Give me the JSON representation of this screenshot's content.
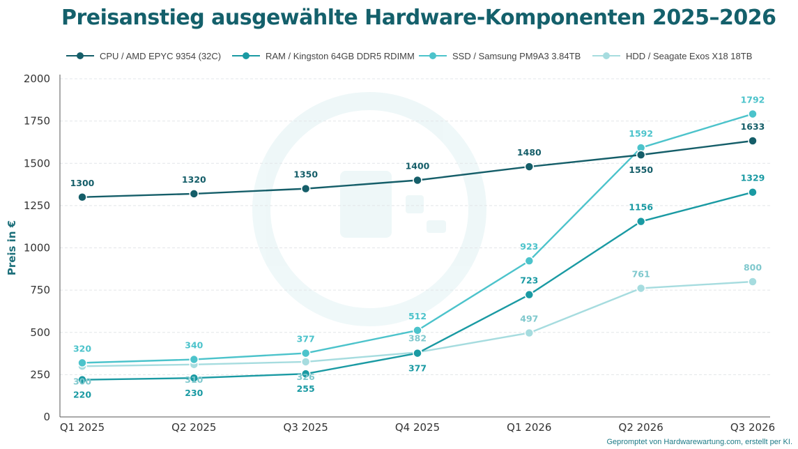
{
  "title": "Preisanstieg ausgewählte Hardware-Komponenten 2025–2026",
  "footer": "Gepromptet von Hardwarewartung.com, erstellt per KI.",
  "chart_data": {
    "type": "line",
    "title": "Preisanstieg ausgewählte Hardware-Komponenten 2025–2026",
    "xlabel": "",
    "ylabel": "Preis in €",
    "categories": [
      "Q1 2025",
      "Q2 2025",
      "Q3 2025",
      "Q4 2025",
      "Q1 2026",
      "Q2 2026",
      "Q3 2026"
    ],
    "ylim": [
      0,
      2000
    ],
    "yticks": [
      0,
      250,
      500,
      750,
      1000,
      1250,
      1500,
      1750,
      2000
    ],
    "grid": true,
    "legend_position": "top",
    "series": [
      {
        "name": "CPU / AMD EPYC 9354 (32C)",
        "color": "#155e69",
        "values": [
          1300,
          1320,
          1350,
          1400,
          1480,
          1550,
          1633
        ],
        "labels": [
          "1300",
          "1320",
          "1350",
          "1400",
          "1480",
          "1550",
          "1633"
        ]
      },
      {
        "name": "RAM / Kingston 64GB DDR5 RDIMM",
        "color": "#1a9aa3",
        "values": [
          220,
          230,
          255,
          377,
          723,
          1156,
          1329
        ],
        "labels": [
          "220",
          "230",
          "255",
          "377",
          "723",
          "1156",
          "1329"
        ]
      },
      {
        "name": "SSD / Samsung PM9A3 3.84TB",
        "color": "#4cc3cb",
        "values": [
          320,
          340,
          377,
          512,
          923,
          1592,
          1792
        ],
        "labels": [
          "320",
          "340",
          "377",
          "512",
          "923",
          "1592",
          "1792"
        ]
      },
      {
        "name": "HDD / Seagate Exos X18 18TB",
        "color": "#a6dcdf",
        "values": [
          300,
          310,
          326,
          382,
          497,
          761,
          800
        ],
        "labels": [
          "300",
          "310",
          "326",
          "382",
          "497",
          "761",
          "800"
        ]
      }
    ]
  }
}
